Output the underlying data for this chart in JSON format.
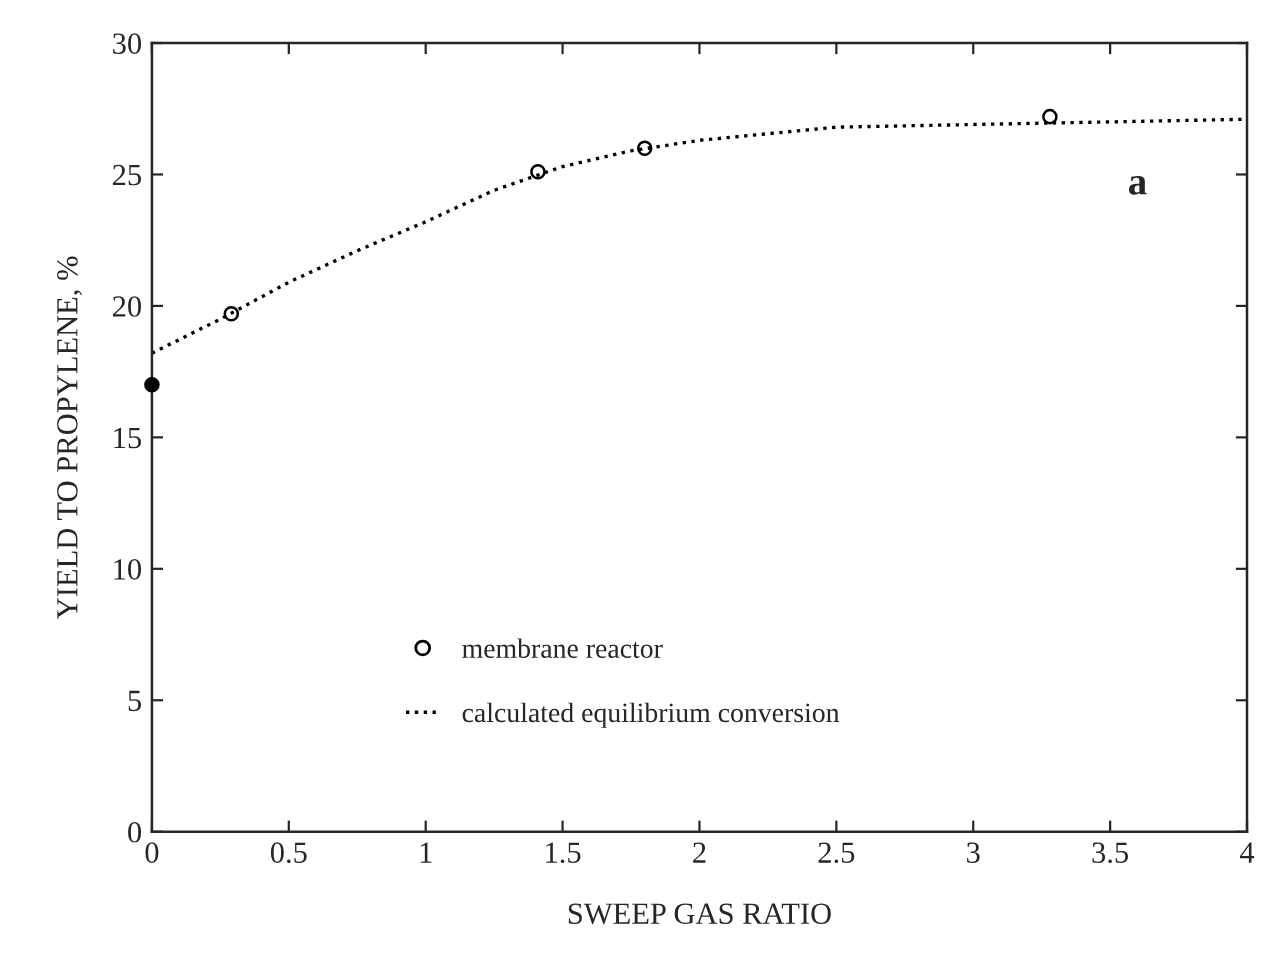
{
  "chart_data": {
    "type": "scatter",
    "xlabel": "SWEEP GAS RATIO",
    "ylabel": "YIELD TO PROPYLENE, %",
    "xlim": [
      0,
      4
    ],
    "ylim": [
      0,
      30
    ],
    "xticks": [
      0,
      0.5,
      1,
      1.5,
      2,
      2.5,
      3,
      3.5,
      4
    ],
    "yticks": [
      0,
      5,
      10,
      15,
      20,
      25,
      30
    ],
    "grid": false,
    "legend": "bottom",
    "annotations": [
      "a"
    ],
    "series": [
      {
        "name": "membrane reactor",
        "marker": "circle",
        "color": "#000000",
        "x": [
          0.29,
          1.41,
          1.8,
          3.28
        ],
        "values": [
          19.7,
          25.1,
          26.0,
          27.2
        ]
      },
      {
        "marker": "circle",
        "color": "#000000",
        "x": [
          0
        ],
        "values": [
          17.0
        ]
      },
      {
        "name": "calculated equilibrium conversion",
        "type": "line",
        "line_style": "dotted",
        "marker": "none",
        "color": "#000000",
        "x": [
          0,
          0.25,
          0.5,
          0.75,
          1,
          1.25,
          1.5,
          1.75,
          2,
          2.5,
          3,
          3.5,
          4
        ],
        "values": [
          18.2,
          19.5,
          20.9,
          22.1,
          23.2,
          24.4,
          25.3,
          25.9,
          26.3,
          26.8,
          26.9,
          27.0,
          27.1
        ]
      }
    ]
  }
}
